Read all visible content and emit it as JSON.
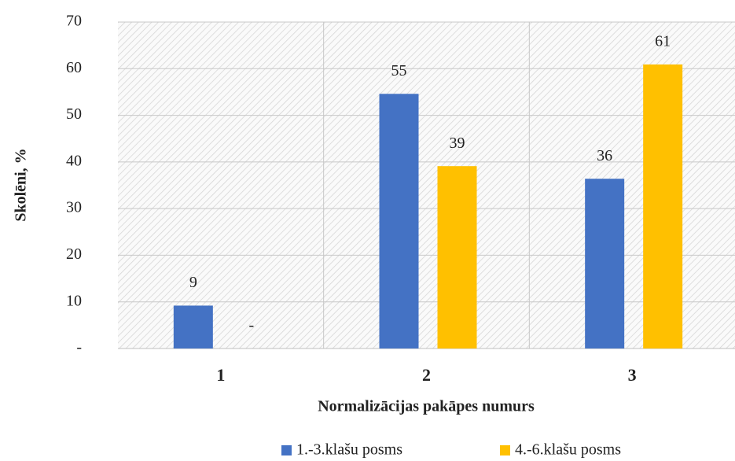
{
  "chart_data": {
    "type": "bar",
    "x_label": "Normalizācijas pakāpes numurs",
    "y_label": "Skolēni, %",
    "categories": [
      "1",
      "2",
      "3"
    ],
    "series": [
      {
        "name": "1.-3.klašu posms",
        "color": "#4472c4",
        "values": [
          9.2,
          54.6,
          36.4
        ],
        "value_labels": [
          "9",
          "55",
          "36"
        ]
      },
      {
        "name": "4.-6.klašu posms",
        "color": "#ffc000",
        "values": [
          0,
          39.1,
          60.9
        ],
        "value_labels": [
          "-",
          "39",
          "61"
        ]
      }
    ],
    "ylim": [
      0,
      70
    ],
    "yticks": [
      {
        "value": 0,
        "label": "-"
      },
      10,
      20,
      30,
      40,
      50,
      60,
      70
    ],
    "grid": true,
    "legend": "bottom"
  }
}
